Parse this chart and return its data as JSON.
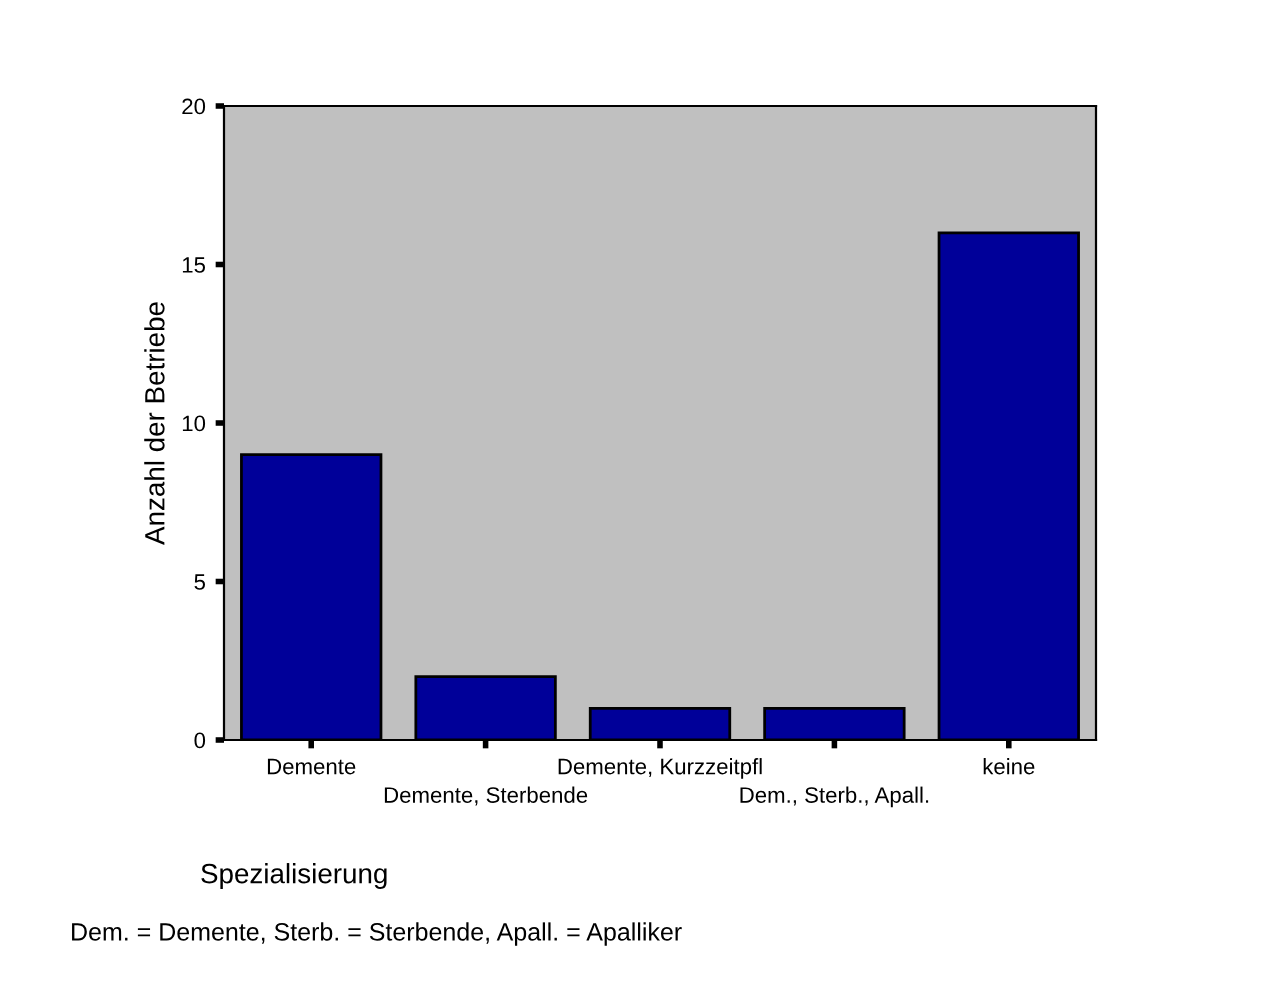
{
  "chart_data": {
    "type": "bar",
    "categories": [
      "Demente",
      "Demente, Sterbende",
      "Demente, Kurzzeitpfl",
      "Dem., Sterb., Apall.",
      "keine"
    ],
    "values": [
      9,
      2,
      1,
      1,
      16
    ],
    "color": "#000099",
    "ylim": [
      0,
      20
    ],
    "yticks": [
      0,
      5,
      10,
      15,
      20
    ],
    "grid": false,
    "legend": false,
    "xlabel": "Spezialisierung",
    "ylabel": "Anzahl der Betriebe",
    "annotations": [
      "Dem. = Demente, Sterb. = Sterbende, Apall. = Apalliker"
    ]
  }
}
